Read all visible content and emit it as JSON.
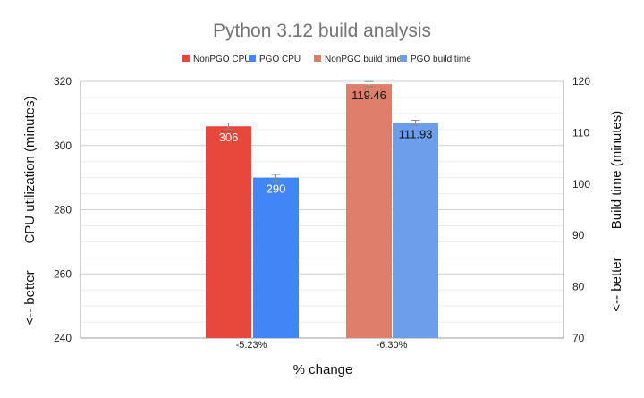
{
  "chart_data": {
    "type": "bar",
    "title": "Python 3.12 build analysis",
    "xlabel": "% change",
    "ylabel_left": "CPU utilization (minutes)",
    "ylabel_right": "Build time (minutes)",
    "left_note": "<-- better",
    "right_note": "<-- better",
    "categories": [
      "-5.23%",
      "-6.30%"
    ],
    "ylim_left": [
      240,
      320
    ],
    "yticks_left": [
      240,
      260,
      280,
      300,
      320
    ],
    "ylim_right": [
      70,
      120
    ],
    "yticks_right": [
      70,
      80,
      90,
      100,
      110,
      120
    ],
    "series": [
      {
        "name": "NonPGO CPU",
        "category": "-5.23%",
        "axis": "left",
        "value": 306,
        "label": "306",
        "color": "#e8473b",
        "label_color": "#ffffff",
        "error": 1
      },
      {
        "name": "PGO CPU",
        "category": "-5.23%",
        "axis": "left",
        "value": 290,
        "label": "290",
        "color": "#4285f4",
        "label_color": "#ffffff",
        "error": 1
      },
      {
        "name": "NonPGO build time",
        "category": "-6.30%",
        "axis": "right",
        "value": 119.46,
        "label": "119.46",
        "color": "#df7f6b",
        "label_color": "#111111",
        "error": 0.5
      },
      {
        "name": "PGO build time",
        "category": "-6.30%",
        "axis": "right",
        "value": 111.93,
        "label": "111.93",
        "color": "#6d9eeb",
        "label_color": "#111111",
        "error": 0.5
      }
    ],
    "legend_position": "top",
    "grid": true
  }
}
